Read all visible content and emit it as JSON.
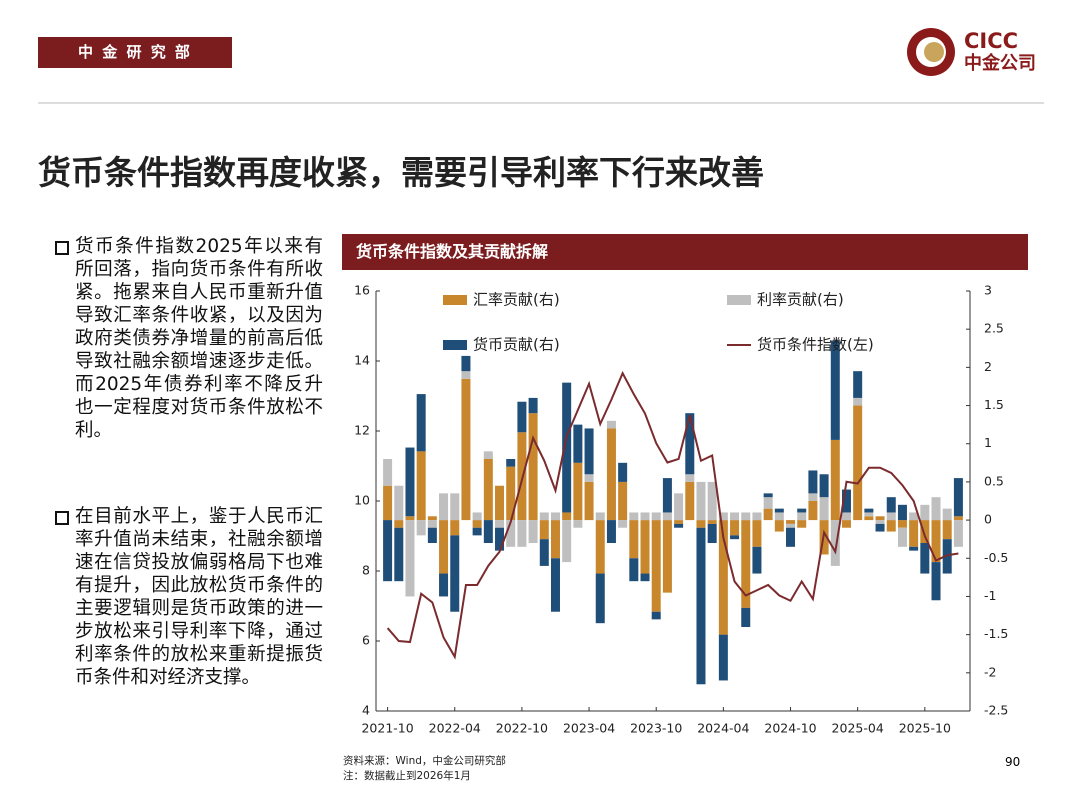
{
  "header": {
    "department": "中 金 研 究 部",
    "logo_en": "CICC",
    "logo_cn": "中金公司"
  },
  "title": "货币条件指数再度收紧，需要引导利率下行来改善",
  "bullets": [
    "货币条件指数2025年以来有所回落，指向货币条件有所收紧。拖累来自人民币重新升值导致汇率条件收紧，以及因为政府类债券净增量的前高后低导致社融余额增速逐步走低。而2025年债券利率不降反升也一定程度对货币条件放松不利。",
    "在目前水平上，鉴于人民币汇率升值尚未结束，社融余额增速在信贷投放偏弱格局下也难有提升，因此放松货币条件的主要逻辑则是货币政策的进一步放松来引导利率下降，通过利率条件的放松来重新提振货币条件和对经济支撑。"
  ],
  "chart_data": {
    "type": "bar",
    "title": "货币条件指数及其贡献拆解",
    "stacked": true,
    "categories": [
      "2021-10",
      null,
      null,
      null,
      null,
      null,
      "2022-04",
      null,
      null,
      null,
      null,
      null,
      "2022-10",
      null,
      null,
      null,
      null,
      null,
      "2023-04",
      null,
      null,
      null,
      null,
      null,
      "2023-10",
      null,
      null,
      null,
      null,
      null,
      "2024-04",
      null,
      null,
      null,
      null,
      null,
      "2024-10",
      null,
      null,
      null,
      null,
      null,
      "2025-04",
      null,
      null,
      null,
      null,
      null,
      "2025-10",
      null,
      null,
      null
    ],
    "series": [
      {
        "name": "汇率贡献(右)",
        "color": "#c8872c",
        "axis": "y2",
        "type": "bar",
        "values": [
          0.45,
          -0.1,
          0.05,
          0.9,
          0.05,
          -0.7,
          -0.2,
          1.85,
          -0.1,
          0.8,
          0.45,
          0.7,
          1.15,
          1.4,
          -0.25,
          -0.5,
          0.1,
          0.75,
          0.5,
          -0.7,
          1.2,
          0.5,
          -0.5,
          -0.7,
          -1.2,
          -0.95,
          -0.05,
          0.5,
          -0.1,
          -0.05,
          -1.5,
          -0.2,
          -1.15,
          -0.35,
          0.15,
          -0.15,
          -0.05,
          -0.1,
          0.25,
          -0.45,
          1.05,
          -0.1,
          1.5,
          0.05,
          0.05,
          -0.15,
          -0.1,
          -0.35,
          -0.3,
          -0.55,
          -0.25,
          0.05
        ]
      },
      {
        "name": "利率贡献(右)",
        "color": "#bfbfbf",
        "axis": "y2",
        "type": "bar",
        "values": [
          0.35,
          0.45,
          -1.0,
          -0.2,
          -0.1,
          0.35,
          0.35,
          0.1,
          0.1,
          0.1,
          -0.1,
          -0.35,
          -0.35,
          -0.3,
          0.1,
          0.1,
          -0.55,
          -0.1,
          0.1,
          0.1,
          0.1,
          -0.1,
          0.1,
          0.1,
          0.1,
          0.1,
          0.35,
          0.1,
          0.5,
          0.5,
          0.1,
          0.1,
          0.1,
          0.1,
          0.15,
          0.1,
          -0.05,
          0.1,
          0.1,
          0.3,
          -0.6,
          0.1,
          0.1,
          0.05,
          -0.05,
          0.1,
          -0.25,
          0.1,
          0.2,
          0.3,
          0.15,
          -0.35
        ]
      },
      {
        "name": "货币贡献(右)",
        "color": "#1f4e79",
        "axis": "y2",
        "type": "bar",
        "values": [
          -0.8,
          -0.7,
          0.9,
          0.75,
          -0.2,
          -0.3,
          -1.0,
          0.2,
          -0.1,
          -0.3,
          -0.3,
          0.1,
          0.4,
          0.2,
          -0.35,
          -0.7,
          1.7,
          0.5,
          0.6,
          -0.65,
          -0.3,
          0.25,
          -0.3,
          -0.1,
          -0.1,
          0.45,
          -0.05,
          0.8,
          -2.05,
          -0.25,
          -0.6,
          -0.05,
          -0.25,
          -0.35,
          0.05,
          0.05,
          -0.25,
          0.05,
          0.3,
          0.3,
          1.3,
          0.3,
          0.35,
          0.05,
          -0.1,
          0.2,
          0.2,
          -0.05,
          -0.4,
          -0.5,
          -0.45,
          0.5
        ]
      },
      {
        "name": "货币条件指数(左)",
        "color": "#7b2b2e",
        "axis": "y",
        "type": "line",
        "values": [
          6.37,
          6.0,
          5.97,
          7.35,
          7.1,
          6.1,
          5.55,
          7.6,
          7.6,
          8.15,
          8.55,
          9.4,
          10.6,
          11.8,
          11.15,
          10.3,
          11.85,
          12.6,
          13.35,
          12.2,
          12.9,
          13.65,
          13.05,
          12.5,
          11.65,
          11.1,
          11.2,
          12.45,
          11.15,
          11.3,
          8.95,
          7.7,
          7.3,
          7.45,
          7.6,
          7.3,
          7.15,
          7.7,
          7.2,
          9.1,
          8.55,
          10.55,
          10.5,
          10.95,
          10.95,
          10.8,
          10.45,
          10.0,
          9.0,
          8.3,
          8.45,
          8.5
        ]
      }
    ],
    "ylim": [
      4,
      16
    ],
    "yticks": [
      4,
      6,
      8,
      10,
      12,
      14,
      16
    ],
    "y2lim": [
      -2.5,
      3
    ],
    "y2ticks": [
      3,
      2.5,
      2,
      1.5,
      1,
      0.5,
      0,
      -0.5,
      -1,
      -1.5,
      -2,
      -2.5
    ],
    "grid": false,
    "legend": "top"
  },
  "footer": {
    "source": "资料来源：Wind，中金公司研究部",
    "note": "注：数据截止到2026年1月",
    "page_number": 90
  }
}
